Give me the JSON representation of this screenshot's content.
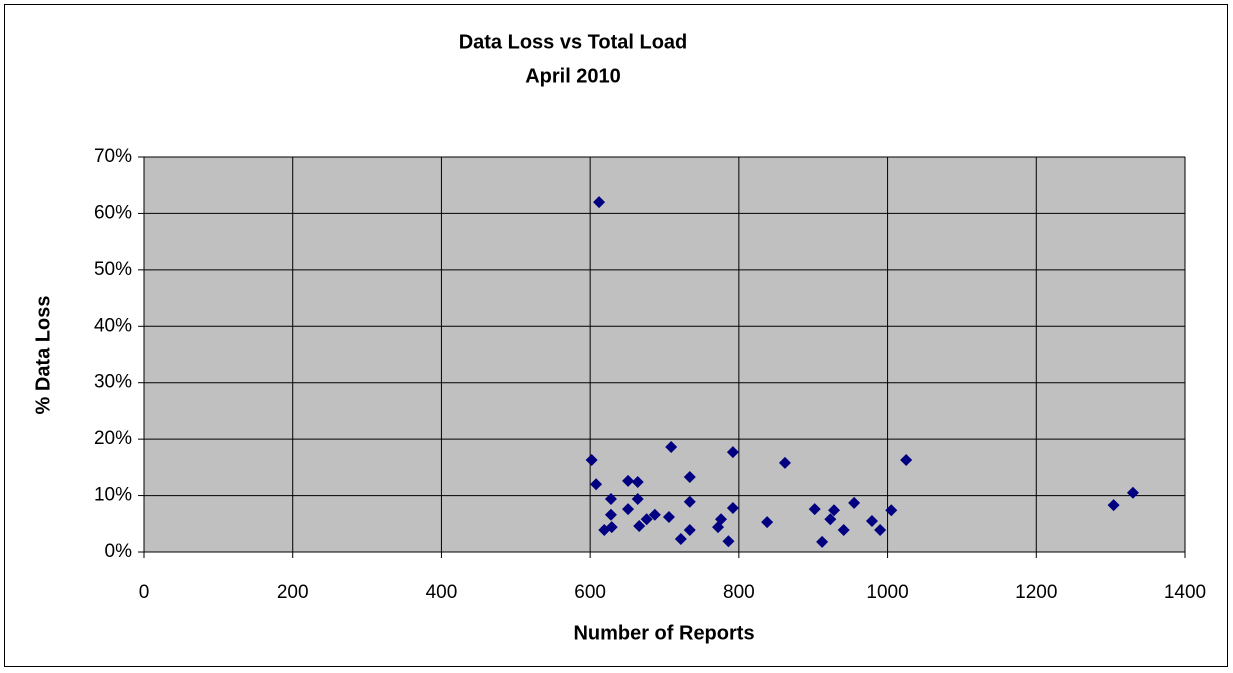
{
  "chart_data": {
    "type": "scatter",
    "title": "Data Loss vs Total Load",
    "subtitle": "April 2010",
    "x_label": "Number of Reports",
    "y_label": "% Data Loss",
    "color": "#000080",
    "plot_background": "#c0c0c0",
    "grid": true,
    "xlim": [
      0,
      1400
    ],
    "xticks": [
      0,
      200,
      400,
      600,
      800,
      1000,
      1200,
      1400
    ],
    "ylim": [
      0,
      70
    ],
    "yticks": [
      {
        "value": 0,
        "label": "0%"
      },
      {
        "value": 10,
        "label": "10%"
      },
      {
        "value": 20,
        "label": "20%"
      },
      {
        "value": 30,
        "label": "30%"
      },
      {
        "value": 40,
        "label": "40%"
      },
      {
        "value": 50,
        "label": "50%"
      },
      {
        "value": 60,
        "label": "60%"
      },
      {
        "value": 70,
        "label": "70%"
      }
    ],
    "x": [
      612,
      602,
      608,
      619,
      628,
      628,
      629,
      651,
      651,
      664,
      664,
      666,
      676,
      687,
      706,
      709,
      722,
      734,
      734,
      734,
      772,
      776,
      786,
      792,
      792,
      838,
      862,
      902,
      912,
      923,
      928,
      941,
      955,
      979,
      990,
      1005,
      1025,
      1304,
      1330
    ],
    "values": [
      62.0,
      16.3,
      12.0,
      3.9,
      9.4,
      6.6,
      4.4,
      12.6,
      7.6,
      12.4,
      9.4,
      4.6,
      5.8,
      6.6,
      6.2,
      18.6,
      2.3,
      13.3,
      8.9,
      3.9,
      4.4,
      5.8,
      1.9,
      17.7,
      7.8,
      5.3,
      15.8,
      7.6,
      1.8,
      5.8,
      7.4,
      3.9,
      8.7,
      5.5,
      3.9,
      7.4,
      16.3,
      8.3,
      10.5
    ]
  }
}
